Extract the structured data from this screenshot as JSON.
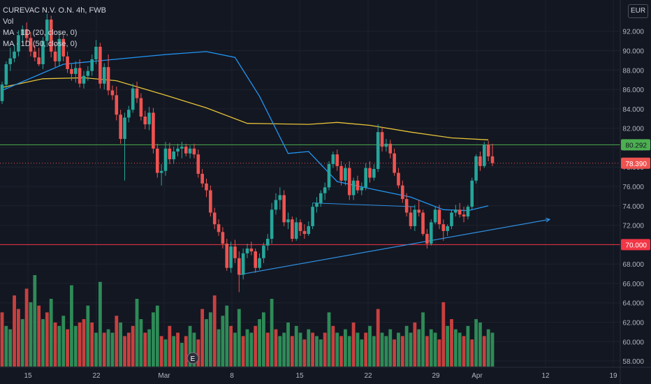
{
  "legend": {
    "title": "CUREVAC N.V. O.N. 4h, FWB",
    "vol": "Vol",
    "ma20": "MA · 1D (20, close, 0)",
    "ma50": "MA · 1D (50, close, 0)"
  },
  "currency": "EUR",
  "colors": {
    "background": "#131722",
    "up": "#26a69a",
    "down": "#ef5350",
    "vol_up": "#2e8b57",
    "vol_down": "#c7403f",
    "ma20": "#2196f3",
    "ma50": "#e6c337",
    "support": "#f23645",
    "resistance": "#4caf50",
    "trendline": "#2f8fe0"
  },
  "event_marker": "E",
  "chart_data": {
    "type": "candlestick",
    "title": "CUREVAC N.V. O.N. 4h, FWB",
    "currency": "EUR",
    "ylim": [
      57.5,
      94.5
    ],
    "y_ticks": [
      "58.000",
      "60.000",
      "62.000",
      "64.000",
      "66.000",
      "68.000",
      "70.000",
      "72.000",
      "74.000",
      "76.000",
      "78.000",
      "80.000",
      "82.000",
      "84.000",
      "86.000",
      "88.000",
      "90.000",
      "92.000"
    ],
    "x_ticks": [
      "15",
      "22",
      "Mar",
      "8",
      "15",
      "22",
      "29",
      "Apr",
      "12",
      "19"
    ],
    "candles": [
      [
        84.8,
        86.8,
        84.5,
        86.5
      ],
      [
        86.5,
        88.9,
        86.1,
        88.6
      ],
      [
        88.6,
        90.3,
        87.9,
        89.2
      ],
      [
        89.2,
        90.6,
        88.8,
        89.9
      ],
      [
        89.9,
        92.1,
        89.4,
        91.6
      ],
      [
        91.6,
        92.6,
        90.8,
        92.2
      ],
      [
        92.2,
        92.9,
        90.8,
        91.3
      ],
      [
        91.3,
        91.9,
        89.4,
        89.9
      ],
      [
        89.9,
        90.6,
        88.9,
        89.3
      ],
      [
        89.3,
        90.3,
        88.4,
        88.6
      ],
      [
        88.6,
        91.4,
        88.1,
        91.0
      ],
      [
        91.0,
        93.8,
        90.4,
        93.2
      ],
      [
        93.2,
        93.6,
        89.3,
        89.9
      ],
      [
        89.9,
        90.7,
        88.3,
        88.9
      ],
      [
        88.9,
        91.8,
        88.4,
        91.2
      ],
      [
        91.2,
        91.6,
        88.9,
        89.4
      ],
      [
        89.4,
        89.9,
        87.7,
        88.1
      ],
      [
        88.1,
        88.6,
        86.9,
        87.6
      ],
      [
        87.6,
        88.9,
        86.7,
        88.2
      ],
      [
        88.2,
        89.1,
        86.2,
        86.6
      ],
      [
        86.6,
        87.9,
        86.1,
        87.4
      ],
      [
        87.4,
        88.4,
        86.9,
        87.9
      ],
      [
        87.9,
        89.6,
        87.4,
        89.1
      ],
      [
        89.1,
        91.1,
        88.6,
        90.4
      ],
      [
        90.4,
        90.8,
        86.1,
        86.6
      ],
      [
        86.6,
        88.7,
        86.0,
        88.3
      ],
      [
        88.3,
        89.6,
        85.4,
        85.9
      ],
      [
        85.9,
        86.4,
        84.9,
        85.4
      ],
      [
        85.4,
        86.3,
        82.8,
        83.4
      ],
      [
        83.4,
        83.9,
        80.4,
        80.9
      ],
      [
        80.9,
        83.6,
        76.6,
        83.1
      ],
      [
        83.1,
        84.3,
        82.6,
        83.9
      ],
      [
        83.9,
        86.6,
        83.6,
        86.1
      ],
      [
        86.1,
        86.8,
        84.6,
        85.1
      ],
      [
        85.1,
        85.6,
        82.8,
        83.2
      ],
      [
        83.2,
        83.8,
        81.9,
        82.4
      ],
      [
        82.4,
        84.2,
        81.8,
        83.6
      ],
      [
        83.6,
        84.1,
        79.4,
        79.9
      ],
      [
        79.9,
        80.4,
        76.9,
        77.4
      ],
      [
        77.4,
        78.3,
        76.1,
        77.6
      ],
      [
        77.6,
        80.6,
        77.1,
        79.9
      ],
      [
        79.9,
        80.5,
        78.3,
        78.8
      ],
      [
        78.8,
        80.1,
        78.3,
        79.6
      ],
      [
        79.6,
        80.4,
        79.1,
        79.9
      ],
      [
        79.9,
        80.6,
        78.9,
        80.1
      ],
      [
        80.1,
        80.4,
        79.1,
        79.4
      ],
      [
        79.4,
        80.2,
        78.9,
        79.9
      ],
      [
        79.9,
        80.4,
        78.9,
        79.3
      ],
      [
        79.3,
        79.8,
        76.9,
        77.3
      ],
      [
        77.3,
        77.8,
        75.9,
        76.3
      ],
      [
        76.3,
        76.8,
        74.9,
        75.6
      ],
      [
        75.6,
        76.1,
        72.9,
        73.3
      ],
      [
        73.3,
        73.8,
        71.6,
        72.1
      ],
      [
        72.1,
        72.6,
        70.9,
        71.3
      ],
      [
        71.3,
        71.8,
        69.6,
        70.1
      ],
      [
        70.1,
        70.6,
        67.3,
        67.6
      ],
      [
        67.6,
        70.3,
        67.1,
        69.8
      ],
      [
        69.8,
        70.5,
        68.1,
        68.6
      ],
      [
        68.6,
        69.3,
        65.1,
        66.9
      ],
      [
        66.9,
        69.6,
        66.4,
        69.1
      ],
      [
        69.1,
        70.1,
        68.6,
        69.6
      ],
      [
        69.6,
        70.3,
        68.9,
        69.3
      ],
      [
        69.3,
        69.6,
        67.1,
        67.6
      ],
      [
        67.6,
        69.1,
        67.4,
        68.6
      ],
      [
        68.6,
        70.2,
        68.1,
        69.9
      ],
      [
        69.9,
        71.1,
        69.4,
        70.6
      ],
      [
        70.6,
        74.3,
        70.1,
        73.6
      ],
      [
        73.6,
        75.3,
        73.1,
        74.6
      ],
      [
        74.6,
        75.9,
        73.6,
        75.1
      ],
      [
        75.1,
        75.6,
        71.9,
        72.3
      ],
      [
        72.3,
        73.3,
        71.6,
        72.6
      ],
      [
        72.6,
        72.9,
        70.3,
        70.6
      ],
      [
        70.6,
        72.8,
        70.4,
        72.3
      ],
      [
        72.3,
        72.6,
        70.9,
        71.4
      ],
      [
        71.4,
        72.1,
        70.6,
        71.1
      ],
      [
        71.1,
        72.4,
        70.9,
        71.9
      ],
      [
        71.9,
        74.3,
        71.6,
        73.9
      ],
      [
        73.9,
        74.9,
        73.3,
        74.3
      ],
      [
        74.3,
        75.6,
        73.9,
        75.3
      ],
      [
        75.3,
        76.4,
        74.6,
        75.9
      ],
      [
        75.9,
        78.6,
        75.6,
        78.3
      ],
      [
        78.3,
        79.6,
        77.9,
        79.3
      ],
      [
        79.3,
        79.8,
        77.6,
        78.1
      ],
      [
        78.1,
        78.6,
        76.1,
        76.6
      ],
      [
        76.6,
        78.3,
        76.1,
        77.9
      ],
      [
        77.9,
        78.6,
        74.6,
        75.1
      ],
      [
        75.1,
        76.9,
        74.6,
        76.6
      ],
      [
        76.6,
        77.1,
        75.3,
        75.6
      ],
      [
        75.6,
        76.4,
        75.1,
        75.9
      ],
      [
        75.9,
        78.4,
        75.6,
        77.9
      ],
      [
        77.9,
        78.6,
        76.4,
        76.9
      ],
      [
        76.9,
        78.3,
        76.6,
        77.8
      ],
      [
        77.8,
        82.4,
        77.5,
        81.6
      ],
      [
        81.6,
        82.1,
        79.6,
        80.1
      ],
      [
        80.1,
        80.9,
        79.6,
        80.4
      ],
      [
        80.4,
        80.8,
        78.9,
        79.4
      ],
      [
        79.4,
        79.9,
        77.1,
        77.4
      ],
      [
        77.4,
        77.9,
        75.8,
        76.1
      ],
      [
        76.1,
        76.6,
        74.3,
        74.7
      ],
      [
        74.7,
        75.3,
        72.9,
        73.3
      ],
      [
        73.3,
        73.9,
        71.6,
        71.9
      ],
      [
        71.9,
        74.1,
        71.4,
        73.6
      ],
      [
        73.6,
        74.6,
        72.9,
        73.3
      ],
      [
        73.3,
        73.6,
        70.9,
        71.1
      ],
      [
        71.1,
        71.6,
        69.6,
        70.1
      ],
      [
        70.1,
        72.6,
        69.9,
        72.3
      ],
      [
        72.3,
        73.9,
        72.1,
        73.6
      ],
      [
        73.6,
        74.1,
        71.6,
        72.1
      ],
      [
        72.1,
        72.6,
        70.4,
        71.4
      ],
      [
        71.4,
        72.1,
        70.9,
        71.9
      ],
      [
        71.9,
        73.6,
        71.6,
        73.3
      ],
      [
        73.3,
        74.1,
        72.9,
        73.6
      ],
      [
        73.6,
        74.3,
        72.8,
        73.1
      ],
      [
        73.1,
        73.9,
        72.3,
        72.9
      ],
      [
        72.9,
        74.1,
        72.6,
        73.9
      ],
      [
        73.9,
        76.9,
        73.6,
        76.6
      ],
      [
        76.6,
        79.3,
        76.3,
        79.1
      ],
      [
        79.1,
        79.6,
        77.6,
        78.1
      ],
      [
        78.1,
        80.6,
        77.9,
        80.3
      ],
      [
        80.3,
        80.7,
        78.6,
        79.1
      ],
      [
        79.1,
        80.4,
        78.1,
        78.4
      ]
    ],
    "volume": [
      [
        16,
        0
      ],
      [
        12,
        1
      ],
      [
        11,
        1
      ],
      [
        21,
        0
      ],
      [
        17,
        0
      ],
      [
        14,
        1
      ],
      [
        23,
        0
      ],
      [
        19,
        1
      ],
      [
        27,
        1
      ],
      [
        18,
        0
      ],
      [
        14,
        1
      ],
      [
        16,
        0
      ],
      [
        20,
        1
      ],
      [
        13,
        0
      ],
      [
        12,
        1
      ],
      [
        15,
        1
      ],
      [
        11,
        0
      ],
      [
        24,
        1
      ],
      [
        12,
        1
      ],
      [
        13,
        0
      ],
      [
        14,
        0
      ],
      [
        18,
        1
      ],
      [
        13,
        0
      ],
      [
        10,
        1
      ],
      [
        25,
        1
      ],
      [
        10,
        0
      ],
      [
        11,
        1
      ],
      [
        10,
        1
      ],
      [
        15,
        0
      ],
      [
        13,
        1
      ],
      [
        9,
        0
      ],
      [
        10,
        0
      ],
      [
        12,
        0
      ],
      [
        20,
        1
      ],
      [
        14,
        1
      ],
      [
        10,
        0
      ],
      [
        11,
        1
      ],
      [
        16,
        1
      ],
      [
        18,
        1
      ],
      [
        9,
        0
      ],
      [
        8,
        1
      ],
      [
        12,
        0
      ],
      [
        9,
        1
      ],
      [
        10,
        0
      ],
      [
        7,
        1
      ],
      [
        9,
        0
      ],
      [
        12,
        1
      ],
      [
        10,
        1
      ],
      [
        8,
        0
      ],
      [
        17,
        0
      ],
      [
        14,
        1
      ],
      [
        16,
        1
      ],
      [
        21,
        0
      ],
      [
        11,
        1
      ],
      [
        15,
        1
      ],
      [
        18,
        1
      ],
      [
        12,
        0
      ],
      [
        10,
        1
      ],
      [
        17,
        1
      ],
      [
        9,
        0
      ],
      [
        11,
        1
      ],
      [
        10,
        1
      ],
      [
        12,
        0
      ],
      [
        14,
        1
      ],
      [
        16,
        1
      ],
      [
        10,
        0
      ],
      [
        20,
        1
      ],
      [
        11,
        0
      ],
      [
        9,
        1
      ],
      [
        10,
        1
      ],
      [
        13,
        1
      ],
      [
        9,
        0
      ],
      [
        12,
        1
      ],
      [
        10,
        1
      ],
      [
        8,
        0
      ],
      [
        11,
        1
      ],
      [
        10,
        0
      ],
      [
        9,
        1
      ],
      [
        8,
        1
      ],
      [
        10,
        0
      ],
      [
        16,
        1
      ],
      [
        12,
        0
      ],
      [
        10,
        1
      ],
      [
        9,
        0
      ],
      [
        11,
        1
      ],
      [
        9,
        1
      ],
      [
        13,
        0
      ],
      [
        10,
        1
      ],
      [
        8,
        1
      ],
      [
        10,
        0
      ],
      [
        12,
        1
      ],
      [
        9,
        1
      ],
      [
        17,
        0
      ],
      [
        10,
        1
      ],
      [
        9,
        1
      ],
      [
        11,
        1
      ],
      [
        8,
        0
      ],
      [
        10,
        1
      ],
      [
        9,
        0
      ],
      [
        12,
        1
      ],
      [
        10,
        1
      ],
      [
        13,
        0
      ],
      [
        11,
        1
      ],
      [
        16,
        1
      ],
      [
        9,
        0
      ],
      [
        11,
        1
      ],
      [
        10,
        1
      ],
      [
        8,
        0
      ],
      [
        19,
        0
      ],
      [
        12,
        1
      ],
      [
        14,
        0
      ],
      [
        11,
        1
      ],
      [
        10,
        1
      ],
      [
        9,
        0
      ],
      [
        12,
        1
      ],
      [
        8,
        0
      ],
      [
        14,
        1
      ],
      [
        13,
        1
      ],
      [
        9,
        0
      ],
      [
        11,
        1
      ],
      [
        10,
        1
      ]
    ],
    "ma20": [
      [
        0,
        85.9
      ],
      [
        15,
        88.6
      ],
      [
        30,
        89.2
      ],
      [
        40,
        89.6
      ],
      [
        50,
        89.9
      ],
      [
        57,
        89.3
      ],
      [
        63,
        85.3
      ],
      [
        70,
        79.4
      ],
      [
        75,
        79.6
      ],
      [
        82,
        76.5
      ],
      [
        92,
        75.6
      ],
      [
        100,
        74.9
      ],
      [
        108,
        73.6
      ],
      [
        114,
        73.5
      ],
      [
        119,
        74.0
      ]
    ],
    "ma50": [
      [
        0,
        86.2
      ],
      [
        10,
        87.1
      ],
      [
        20,
        87.2
      ],
      [
        28,
        86.9
      ],
      [
        40,
        85.4
      ],
      [
        50,
        84.1
      ],
      [
        60,
        82.5
      ],
      [
        75,
        82.4
      ],
      [
        82,
        82.6
      ],
      [
        90,
        82.3
      ],
      [
        100,
        81.6
      ],
      [
        110,
        81.0
      ],
      [
        119,
        80.8
      ]
    ],
    "horizontal_lines": [
      {
        "price": 80.292,
        "label": "80.292"
      },
      {
        "price": 70.0,
        "label": "70.000"
      }
    ],
    "last_price": {
      "price": 78.39,
      "label": "78.390"
    },
    "trendline": {
      "from": [
        58,
        66.9
      ],
      "to": [
        134,
        72.6
      ]
    },
    "trendline2": {
      "from": [
        76,
        74.3
      ],
      "to": [
        101,
        73.9
      ]
    }
  }
}
